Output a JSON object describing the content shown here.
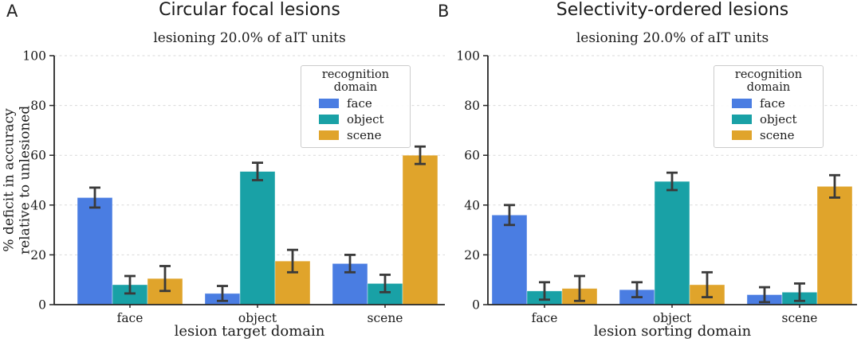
{
  "colors": {
    "grid": "#d9d9d9",
    "axis": "#262626",
    "errorbar": "#3a3a3a",
    "text": "#1b1b1b",
    "face_blue": "#4a7de2",
    "object_teal": "#19a1a6",
    "scene_gold": "#e0a42b"
  },
  "chart_data": [
    {
      "type": "bar",
      "panel": "A",
      "title": "Circular focal lesions",
      "subtitle": "lesioning 20.0% of aIT units",
      "xlabel": "lesion target domain",
      "ylabel": "% deficit in accuracy relative to unlesioned",
      "ylabel_lines": [
        "% deficit in accuracy",
        "relative to unlesioned"
      ],
      "categories": [
        "face",
        "object",
        "scene"
      ],
      "legend_title": "recognition domain",
      "legend_position": "upper right",
      "grid": "dashed horizontal",
      "ylim": [
        0,
        100
      ],
      "yticks": [
        0,
        20,
        40,
        60,
        80,
        100
      ],
      "series": [
        {
          "name": "face",
          "color": "#4a7de2",
          "values": [
            43,
            4.5,
            16.5
          ],
          "errors": [
            4,
            3,
            3.5
          ]
        },
        {
          "name": "object",
          "color": "#19a1a6",
          "values": [
            8,
            53.5,
            8.5
          ],
          "errors": [
            3.5,
            3.5,
            3.5
          ]
        },
        {
          "name": "scene",
          "color": "#e0a42b",
          "values": [
            10.5,
            17.5,
            60
          ],
          "errors": [
            5,
            4.5,
            3.5
          ]
        }
      ]
    },
    {
      "type": "bar",
      "panel": "B",
      "title": "Selectivity-ordered lesions",
      "subtitle": "lesioning 20.0% of aIT units",
      "xlabel": "lesion sorting domain",
      "ylabel": "",
      "categories": [
        "face",
        "object",
        "scene"
      ],
      "legend_title": "recognition domain",
      "legend_position": "upper right",
      "grid": "dashed horizontal",
      "ylim": [
        0,
        100
      ],
      "yticks": [
        0,
        20,
        40,
        60,
        80,
        100
      ],
      "series": [
        {
          "name": "face",
          "color": "#4a7de2",
          "values": [
            36,
            6,
            4
          ],
          "errors": [
            4,
            3,
            3
          ]
        },
        {
          "name": "object",
          "color": "#19a1a6",
          "values": [
            5.5,
            49.5,
            5
          ],
          "errors": [
            3.5,
            3.5,
            3.5
          ]
        },
        {
          "name": "scene",
          "color": "#e0a42b",
          "values": [
            6.5,
            8,
            47.5
          ],
          "errors": [
            5,
            5,
            4.5
          ]
        }
      ]
    }
  ]
}
